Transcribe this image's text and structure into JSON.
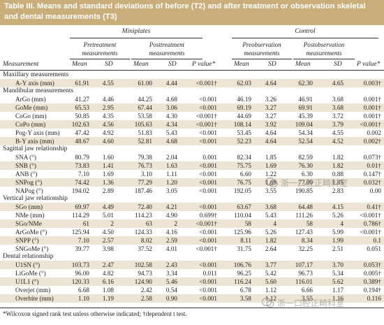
{
  "title": "Table III. Means and standard deviations of before (T2) and after treatment or observation skeletal and dental measurements (T3)",
  "groups": {
    "left": "Miniplates",
    "right": "Control"
  },
  "subgroups": {
    "pre_treat": "Pretreatment measurements",
    "post_treat": "Posttreatment measurements",
    "pre_obs": "Preobservation measurements",
    "post_obs": "Postobservation measurements"
  },
  "columns": {
    "measurement": "Measurement",
    "mean1": "Mean",
    "sd1": "SD",
    "mean2": "Mean",
    "sd2": "SD",
    "p1": "P value*",
    "mean3": "Mean",
    "sd3": "SD",
    "mean4": "Mean",
    "sd4": "SD",
    "p2": "P value*"
  },
  "sections": [
    {
      "title": "Maxillary measurements",
      "rows": [
        [
          "A-Y axis (mm)",
          "61.91",
          "4.55",
          "61.00",
          "4.44",
          "<0.001†",
          "62.03",
          "4.64",
          "62.30",
          "4.65",
          "0.003†"
        ]
      ]
    },
    {
      "title": "Mandibular measurements",
      "rows": [
        [
          "ArGo (mm)",
          "41.27",
          "4.46",
          "44.25",
          "4.68",
          "<0.001",
          "46.19",
          "3.26",
          "46.91",
          "3.68",
          "0.001†"
        ],
        [
          "GoMe (mm)",
          "65.53",
          "2.95",
          "67.44",
          "3.06",
          "<0.001",
          "69.19",
          "3.27",
          "69.91",
          "3.68",
          "0.001†"
        ],
        [
          "CoGo (mm)",
          "50.85",
          "4.35",
          "53.58",
          "4.30",
          "<0.001†",
          "44.69",
          "3.27",
          "45.39",
          "3.72",
          "0.001†"
        ],
        [
          "CoPo (mm)",
          "102.63",
          "4.56",
          "105.63",
          "4.34",
          "<0.001†",
          "108.14",
          "3.92",
          "109.04",
          "3.79",
          "<0.001†"
        ],
        [
          "Pog-Y axis (mm)",
          "47.42",
          "4.92",
          "51.83",
          "5.43",
          "<0.001",
          "53.45",
          "4.64",
          "54.34",
          "4.55",
          "0.002"
        ],
        [
          "B-Y axis (mm)",
          "48.67",
          "4.60",
          "52.81",
          "4.68",
          "<0.001",
          "52.23",
          "4.64",
          "52.54",
          "4.52",
          "0.002†"
        ]
      ]
    },
    {
      "title": "Sagittal jaw relationship",
      "rows": [
        [
          "SNA (°)",
          "80.79",
          "1.60",
          "79.38",
          "2.04",
          "0.001",
          "82.34",
          "1.85",
          "82.59",
          "1.82",
          "0.073†"
        ],
        [
          "SNB (°)",
          "73.83",
          "1.41",
          "76.73",
          "1.63",
          "<0.001",
          "75.75",
          "1.69",
          "76.30",
          "1.82",
          "0.01†"
        ],
        [
          "ANB (°)",
          "7.10",
          "1.69",
          "3.10",
          "1.11",
          "<0.001",
          "6.60",
          "1.22",
          "6.30",
          "0.88",
          "0.147†"
        ],
        [
          "SNPog (°)",
          "74.42",
          "1.36",
          "77.29",
          "1.20",
          "<0.001",
          "76.75",
          "1.69",
          "77.09",
          "1.85",
          "0.032†"
        ],
        [
          "NAPog (°)",
          "194.02",
          "2.89",
          "187.46",
          "3.05",
          "<0.001",
          "192.05",
          "3.55",
          "190.85",
          "2.83",
          "0.00"
        ]
      ]
    },
    {
      "title": "Vertical jaw relationship",
      "rows": [
        [
          "SGo (mm)",
          "69.97",
          "4.49",
          "72.40",
          "4.21",
          "<0.001",
          "63.67",
          "3.68",
          "64.48",
          "4.15",
          "0.41†"
        ],
        [
          "NMe (mm)",
          "114.29",
          "5.01",
          "114.23",
          "4.90",
          "0.699†",
          "110.04",
          "5.43",
          "111.26",
          "5.26",
          "<0.001†"
        ],
        [
          "SGo/NMe",
          "61",
          "2",
          "63",
          "2",
          "<0.001†",
          "58",
          "4",
          "58",
          "4",
          "0.786†"
        ],
        [
          "ArGoMe (°)",
          "125.94",
          "4.50",
          "124.33",
          "4.16",
          "<0.001",
          "125.96",
          "5.26",
          "127.43",
          "5.99",
          "<0.001†"
        ],
        [
          "SNPP (°)",
          "7.10",
          "2.57",
          "8.02",
          "2.59",
          "<0.001",
          "8.11",
          "1.82",
          "8.34",
          "1.99",
          "0.1"
        ],
        [
          "SNGoMe (°)",
          "39.77",
          "3.98",
          "37.52",
          "4.01",
          "<0.001†",
          "31.75",
          "2.64",
          "32.25",
          "2.51",
          "0.051"
        ]
      ]
    },
    {
      "title": "Dental relationship",
      "rows": [
        [
          "U1SN (°)",
          "103.73",
          "2.47",
          "102.58",
          "2.43",
          "<0.001",
          "106.76",
          "3.77",
          "107.17",
          "3.70",
          "0.053†"
        ],
        [
          "LiGoMe (°)",
          "96.00",
          "4.82",
          "94.73",
          "3.34",
          "0.011",
          "96.25",
          "5.42",
          "96.73",
          "5.34",
          "0.005†"
        ],
        [
          "U1L1 (°)",
          "120.33",
          "6.16",
          "124.90",
          "5.46",
          "<0.001",
          "116.24",
          "5.60",
          "116.01",
          "5.62",
          "0.389†"
        ],
        [
          "Overjet (mm)",
          "6.68",
          "1.08",
          "2.42",
          "0.54",
          "<0.001",
          "6.78",
          "1.12",
          "6.66",
          "1.17",
          "0.194†"
        ],
        [
          "Overbite (mm)",
          "1.10",
          "1.19",
          "2.58",
          "0.90",
          "<0.001",
          "3.58",
          "1.12",
          "3.55",
          "1.16",
          "0.116"
        ]
      ]
    }
  ],
  "footnote": "*Wilcoxon signed rank test unless otherwise indicated; †dependent t test.",
  "watermark": {
    "text": "浙一口腔正畸科室",
    "icon": "wechat-logo-icon"
  },
  "colors": {
    "title_bg": "#c9ad7a",
    "row_shade": "#ede4d3",
    "title_text": "#ffffff"
  }
}
